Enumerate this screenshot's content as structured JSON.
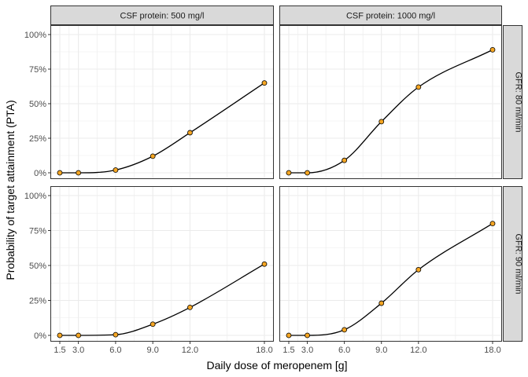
{
  "chart_data": {
    "type": "line",
    "xlabel": "Daily dose of meropenem [g]",
    "ylabel": "Probability of target attainment (PTA)",
    "x_ticks": [
      "1.5",
      "3.0",
      "6.0",
      "9.0",
      "12.0",
      "18.0"
    ],
    "y_ticks": [
      "0%",
      "25%",
      "50%",
      "75%",
      "100%"
    ],
    "xlim": [
      1.5,
      18
    ],
    "ylim": [
      0,
      1
    ],
    "grid": true,
    "point_color": "#F5A623",
    "line_color": "#000000",
    "facet_columns": [
      "CSF protein: 500 mg/l",
      "CSF protein: 1000 mg/l"
    ],
    "facet_rows": [
      "GFR: 80 ml/min",
      "GFR: 90 ml/min"
    ],
    "x": [
      1.5,
      3.0,
      6.0,
      9.0,
      12.0,
      18.0
    ],
    "panels": [
      {
        "row": 0,
        "col": 0,
        "values": [
          0.0,
          0.0,
          0.02,
          0.12,
          0.29,
          0.65
        ]
      },
      {
        "row": 0,
        "col": 1,
        "values": [
          0.0,
          0.0,
          0.09,
          0.37,
          0.62,
          0.89
        ]
      },
      {
        "row": 1,
        "col": 0,
        "values": [
          0.0,
          0.0,
          0.005,
          0.08,
          0.2,
          0.51
        ]
      },
      {
        "row": 1,
        "col": 1,
        "values": [
          0.0,
          0.0,
          0.04,
          0.23,
          0.47,
          0.8
        ]
      }
    ]
  }
}
